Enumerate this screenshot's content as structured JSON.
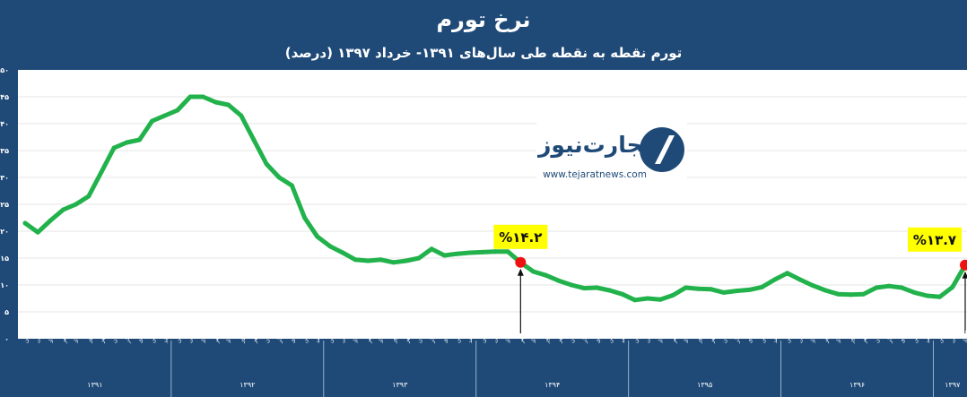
{
  "chart_data": {
    "type": "line",
    "title": "نرخ تورم",
    "subtitle": "تورم نقطه به نقطه طی سال‌های ۱۳۹۱- خرداد ۱۳۹۷ (درصد)",
    "xlabel": "",
    "ylabel": "",
    "ylim": [
      0,
      50
    ],
    "yticks": [
      "۰",
      "۵",
      "۱۰",
      "۱۵",
      "۲۰",
      "۲۵",
      "۳۰",
      "۳۵",
      "۴۰",
      "۴۵",
      "۵۰"
    ],
    "grid": true,
    "legend": "none",
    "months": [
      "فروردین",
      "اردیبهشت",
      "خرداد",
      "تیر",
      "مرداد",
      "شهریور",
      "مهر",
      "آبان",
      "آذر",
      "دی",
      "بهمن",
      "اسفند"
    ],
    "years": [
      "۱۳۹۱",
      "۱۳۹۲",
      "۱۳۹۳",
      "۱۳۹۴",
      "۱۳۹۵",
      "۱۳۹۶",
      "۱۳۹۷"
    ],
    "series": [
      {
        "color": "#22b24c",
        "values": [
          21.5,
          19.8,
          22.0,
          24.0,
          25.0,
          26.5,
          31.0,
          35.5,
          36.5,
          37.0,
          40.5,
          41.5,
          42.5,
          45.0,
          45.0,
          44.0,
          43.5,
          41.5,
          37.0,
          32.5,
          30.0,
          28.5,
          22.5,
          19.0,
          17.2,
          16.0,
          14.7,
          14.5,
          14.7,
          14.2,
          14.5,
          15.0,
          16.7,
          15.5,
          15.8,
          16.0,
          16.1,
          16.2,
          16.2,
          14.2,
          12.5,
          11.8,
          10.8,
          10.0,
          9.4,
          9.5,
          9.0,
          8.3,
          7.2,
          7.5,
          7.3,
          8.1,
          9.5,
          9.3,
          9.2,
          8.6,
          8.9,
          9.1,
          9.6,
          11.0,
          12.2,
          11.0,
          9.9,
          9.0,
          8.3,
          8.2,
          8.3,
          9.5,
          9.8,
          9.5,
          8.6,
          8.0,
          7.8,
          9.6,
          13.7
        ]
      }
    ],
    "annotations": [
      {
        "label": "%۱۴.۲",
        "index": 39,
        "value": 14.2
      },
      {
        "label": "%۱۳.۷",
        "index": 74,
        "value": 13.7
      }
    ],
    "colors": {
      "background": "#1f4a78",
      "plot_background": "#ffffff",
      "line": "#22b24c",
      "marker": "#ee1111",
      "callout": "#ffff00"
    }
  },
  "logo": {
    "name": "تجارت‌نیوز",
    "url": "www.tejaratnews.com"
  }
}
